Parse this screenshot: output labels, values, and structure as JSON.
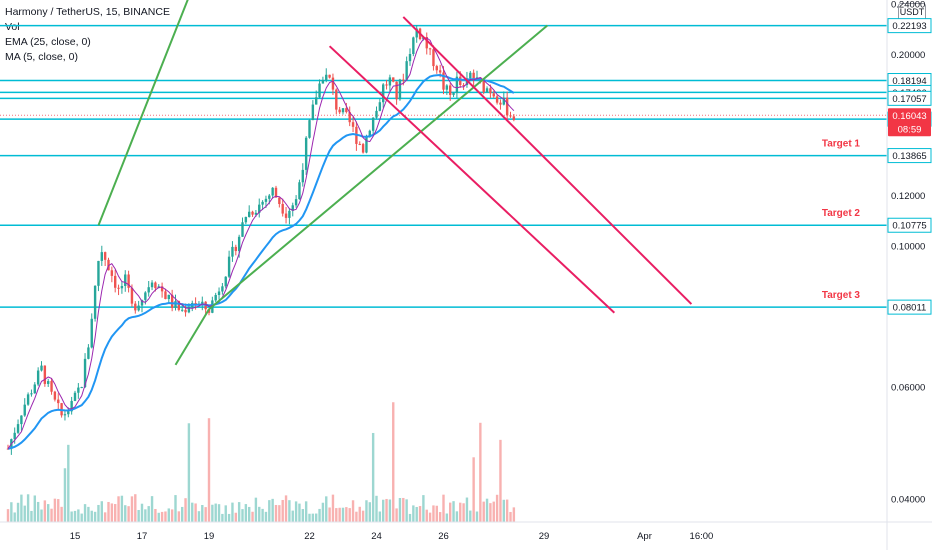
{
  "legend": {
    "title": "Harmony / TetherUS, 15, BINANCE",
    "vol": "Vol",
    "ema": "EMA (25, close, 0)",
    "ma": "MA (5, close, 0)"
  },
  "currency": "USDT",
  "colors": {
    "level_line": "#00bcd4",
    "channel_up": "#4caf50",
    "channel_down": "#e91e63",
    "target_text": "#f23645",
    "price_badge": "#f23645",
    "candle_up": "#26a69a",
    "candle_down": "#ef5350",
    "ema": "#2196f3",
    "ma": "#9c27b0"
  },
  "chart_data": {
    "type": "candlestick",
    "symbol": "Harmony / TetherUS",
    "interval": "15",
    "exchange": "BINANCE",
    "y_scale": "log",
    "ylim": [
      0.029,
      0.245
    ],
    "x_tick_labels": [
      "15",
      "17",
      "19",
      "22",
      "24",
      "26",
      "29",
      "Apr",
      "16:00"
    ],
    "y_tick_labels": [
      "0.24000",
      "0.20000",
      "0.12000",
      "0.10000",
      "0.06000",
      "0.04000"
    ],
    "price_path": [
      [
        13.0,
        0.048
      ],
      [
        13.4,
        0.055
      ],
      [
        13.8,
        0.061
      ],
      [
        14.0,
        0.064
      ],
      [
        14.3,
        0.058
      ],
      [
        14.6,
        0.054
      ],
      [
        14.9,
        0.056
      ],
      [
        15.2,
        0.061
      ],
      [
        15.4,
        0.07
      ],
      [
        15.6,
        0.086
      ],
      [
        15.75,
        0.1
      ],
      [
        16.0,
        0.093
      ],
      [
        16.3,
        0.085
      ],
      [
        16.5,
        0.088
      ],
      [
        16.7,
        0.08
      ],
      [
        17.0,
        0.083
      ],
      [
        17.3,
        0.089
      ],
      [
        17.6,
        0.085
      ],
      [
        17.9,
        0.081
      ],
      [
        18.2,
        0.079
      ],
      [
        18.5,
        0.082
      ],
      [
        18.8,
        0.08
      ],
      [
        19.0,
        0.0795
      ],
      [
        19.3,
        0.086
      ],
      [
        19.6,
        0.094
      ],
      [
        19.9,
        0.104
      ],
      [
        20.1,
        0.112
      ],
      [
        20.5,
        0.116
      ],
      [
        20.9,
        0.122
      ],
      [
        21.3,
        0.113
      ],
      [
        21.6,
        0.118
      ],
      [
        21.8,
        0.135
      ],
      [
        22.0,
        0.155
      ],
      [
        22.2,
        0.173
      ],
      [
        22.4,
        0.186
      ],
      [
        22.6,
        0.182
      ],
      [
        22.8,
        0.166
      ],
      [
        23.0,
        0.161
      ],
      [
        23.2,
        0.156
      ],
      [
        23.4,
        0.148
      ],
      [
        23.6,
        0.142
      ],
      [
        23.8,
        0.155
      ],
      [
        24.0,
        0.163
      ],
      [
        24.2,
        0.178
      ],
      [
        24.4,
        0.182
      ],
      [
        24.6,
        0.172
      ],
      [
        24.8,
        0.186
      ],
      [
        25.0,
        0.204
      ],
      [
        25.2,
        0.219
      ],
      [
        25.4,
        0.212
      ],
      [
        25.6,
        0.199
      ],
      [
        25.8,
        0.192
      ],
      [
        26.0,
        0.178
      ],
      [
        26.2,
        0.172
      ],
      [
        26.4,
        0.182
      ],
      [
        26.6,
        0.176
      ],
      [
        26.8,
        0.186
      ],
      [
        27.0,
        0.181
      ],
      [
        27.2,
        0.178
      ],
      [
        27.4,
        0.176
      ],
      [
        27.6,
        0.172
      ],
      [
        27.8,
        0.167
      ],
      [
        28.0,
        0.161
      ],
      [
        28.1,
        0.16
      ]
    ],
    "last_price": "0.16043",
    "countdown": "08:59",
    "horizontal_levels": [
      "0.22193",
      "0.18194",
      "0.17426",
      "0.17057",
      "0.15820",
      "0.13865",
      "0.10775",
      "0.08011"
    ],
    "targets": [
      {
        "label": "Target 1",
        "price": 0.13865
      },
      {
        "label": "Target 2",
        "price": 0.10775
      },
      {
        "label": "Target 3",
        "price": 0.08011
      }
    ],
    "ascending_channel": {
      "upper": [
        [
          18.5,
          0.254
        ],
        [
          24.5,
          0.254
        ]
      ],
      "lower": [
        [
          19.0,
          0.0795
        ],
        [
          29.1,
          0.222
        ]
      ]
    },
    "descending_channel": {
      "upper": [
        [
          24.8,
          0.229
        ],
        [
          33.4,
          0.081
        ]
      ],
      "lower": [
        [
          22.6,
          0.206
        ],
        [
          31.1,
          0.0785
        ]
      ]
    }
  }
}
